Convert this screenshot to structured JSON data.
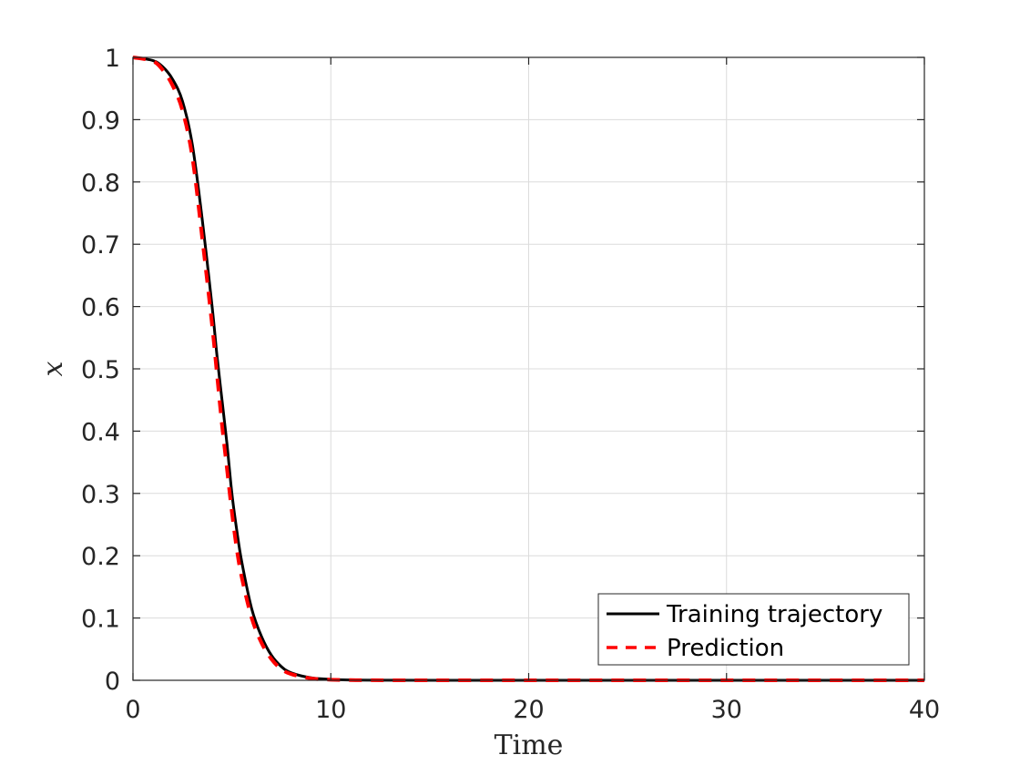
{
  "chart_data": {
    "type": "line",
    "title": "",
    "xlabel": "Time",
    "ylabel": "x",
    "xlim": [
      0,
      40
    ],
    "ylim": [
      0,
      1
    ],
    "xticks": [
      0,
      10,
      20,
      30,
      40
    ],
    "yticks": [
      0,
      0.1,
      0.2,
      0.3,
      0.4,
      0.5,
      0.6,
      0.7,
      0.8,
      0.9,
      1
    ],
    "xtick_labels": [
      "0",
      "10",
      "20",
      "30",
      "40"
    ],
    "ytick_labels": [
      "0",
      "0.1",
      "0.2",
      "0.3",
      "0.4",
      "0.5",
      "0.6",
      "0.7",
      "0.8",
      "0.9",
      "1"
    ],
    "grid": true,
    "legend_position": "bottom-right",
    "series": [
      {
        "name": "Training trajectory",
        "color": "#000000",
        "style": "solid",
        "x": [
          0,
          1,
          1.5,
          2,
          2.5,
          3,
          3.5,
          4,
          4.25,
          4.5,
          4.75,
          5,
          5.25,
          5.5,
          6,
          6.5,
          7,
          7.5,
          8,
          9,
          10,
          11,
          12,
          15,
          20,
          25,
          30,
          35,
          40
        ],
        "y": [
          1.0,
          0.995,
          0.985,
          0.965,
          0.93,
          0.86,
          0.74,
          0.6,
          0.52,
          0.45,
          0.38,
          0.3,
          0.24,
          0.19,
          0.115,
          0.07,
          0.04,
          0.022,
          0.012,
          0.004,
          0.0015,
          0.0005,
          0.0002,
          0.0,
          0.0,
          0.0,
          0.0,
          0.0,
          0.0
        ]
      },
      {
        "name": "Prediction",
        "color": "#ff0000",
        "style": "dashed",
        "x": [
          0,
          1,
          1.5,
          2,
          2.5,
          3,
          3.5,
          4,
          4.25,
          4.5,
          4.75,
          5,
          5.25,
          5.5,
          6,
          6.5,
          7,
          7.5,
          8,
          9,
          10,
          11,
          12,
          15,
          20,
          25,
          30,
          35,
          40
        ],
        "y": [
          1.0,
          0.994,
          0.98,
          0.955,
          0.915,
          0.84,
          0.71,
          0.57,
          0.49,
          0.41,
          0.34,
          0.27,
          0.21,
          0.165,
          0.1,
          0.06,
          0.034,
          0.018,
          0.01,
          0.003,
          0.001,
          0.0003,
          0.0001,
          0.0,
          0.0,
          0.0,
          0.0,
          0.0,
          0.0
        ]
      }
    ]
  }
}
